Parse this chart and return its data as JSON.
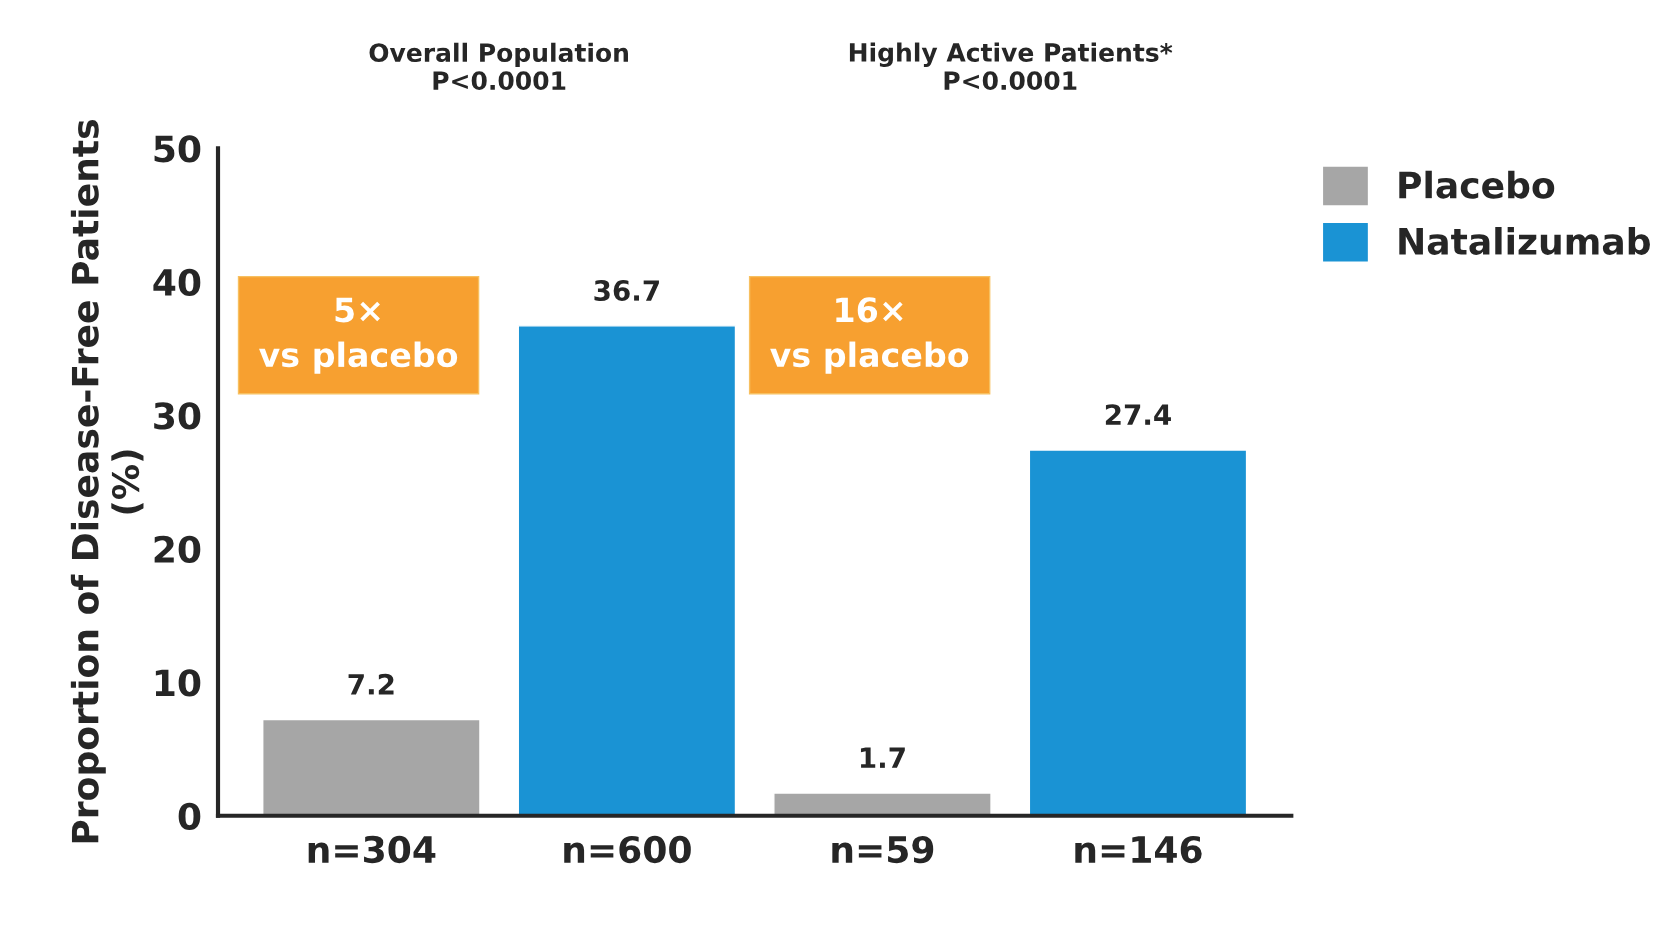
{
  "chart_data": {
    "type": "bar",
    "categories": [
      "n=304",
      "n=600",
      "n=59",
      "n=146"
    ],
    "series": [
      {
        "name": "Placebo",
        "color": "#a6a6a6",
        "values": [
          7.2,
          null,
          1.7,
          null
        ]
      },
      {
        "name": "Natalizumab",
        "color": "#1a93d4",
        "values": [
          null,
          36.7,
          null,
          27.4
        ]
      }
    ],
    "ylabel": "Proportion of Disease-Free Patients\n(%)",
    "ylim": [
      0,
      50
    ],
    "yticks": [
      0,
      10,
      20,
      30,
      40,
      50
    ],
    "data_labels": true,
    "legend": "top right",
    "grid": false,
    "annotations": [
      "Overall Population\nP<0.0001",
      "Highly Active Patients*\nP<0.0001",
      "5×\nvs placebo",
      "16×\nvs placebo"
    ]
  }
}
